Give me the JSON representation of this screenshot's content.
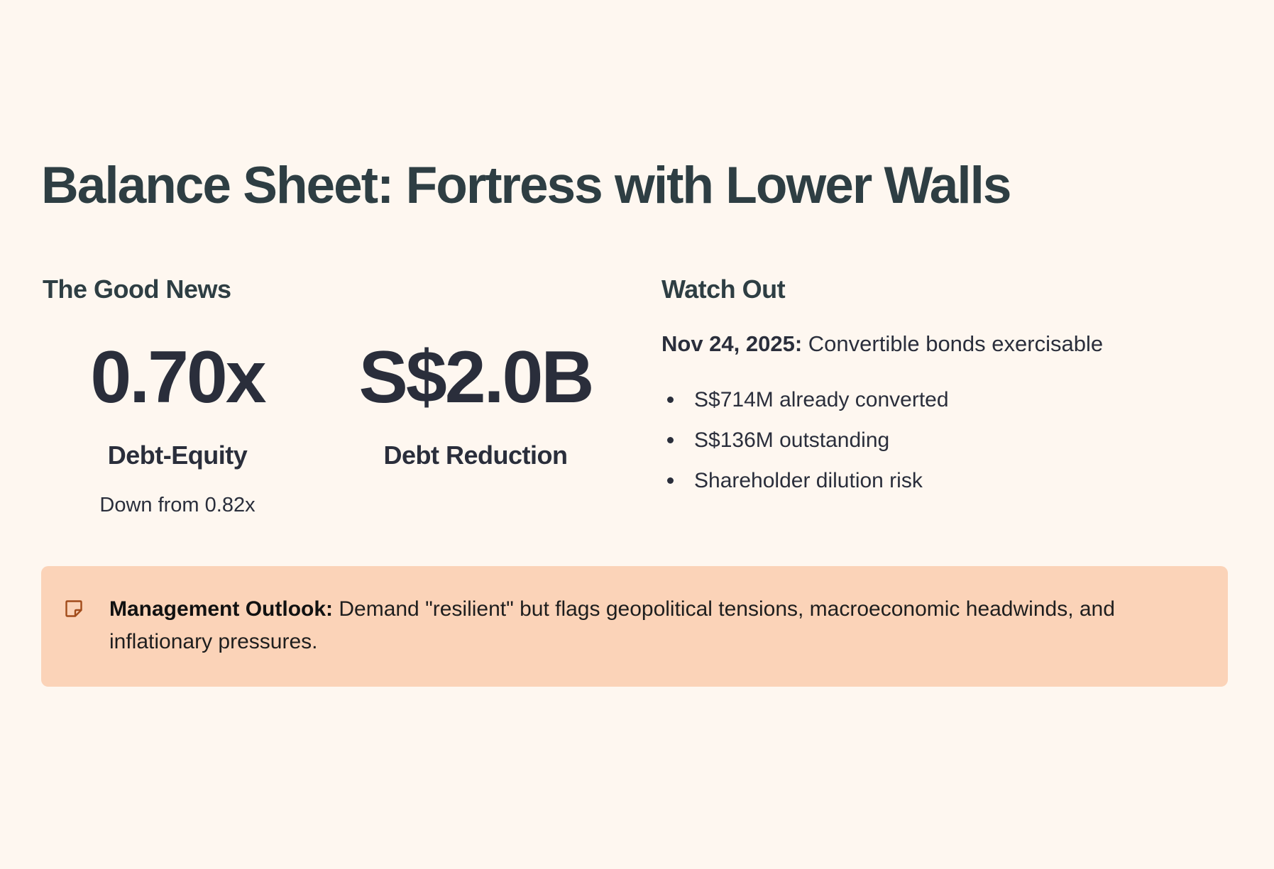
{
  "slide": {
    "title": "Balance Sheet: Fortress with Lower Walls"
  },
  "good_news": {
    "heading": "The Good News",
    "metrics": [
      {
        "value": "0.70x",
        "label": "Debt-Equity",
        "note": "Down from 0.82x"
      },
      {
        "value": "S$2.0B",
        "label": "Debt Reduction"
      }
    ]
  },
  "watch_out": {
    "heading": "Watch Out",
    "intro_bold": "Nov 24, 2025:",
    "intro_text": " Convertible bonds exercisable",
    "items": [
      "S$714M already converted",
      "S$136M outstanding",
      "Shareholder dilution risk"
    ]
  },
  "callout": {
    "icon": "sticky-note-icon",
    "bold": "Management Outlook:",
    "text": " Demand \"resilient\" but flags geopolitical tensions, macroeconomic headwinds, and inflationary pressures."
  },
  "colors": {
    "background": "#FEF7F0",
    "heading": "#2E3E43",
    "text": "#2A2E3B",
    "callout_bg": "#FBD3B8",
    "icon": "#A14B1A"
  }
}
